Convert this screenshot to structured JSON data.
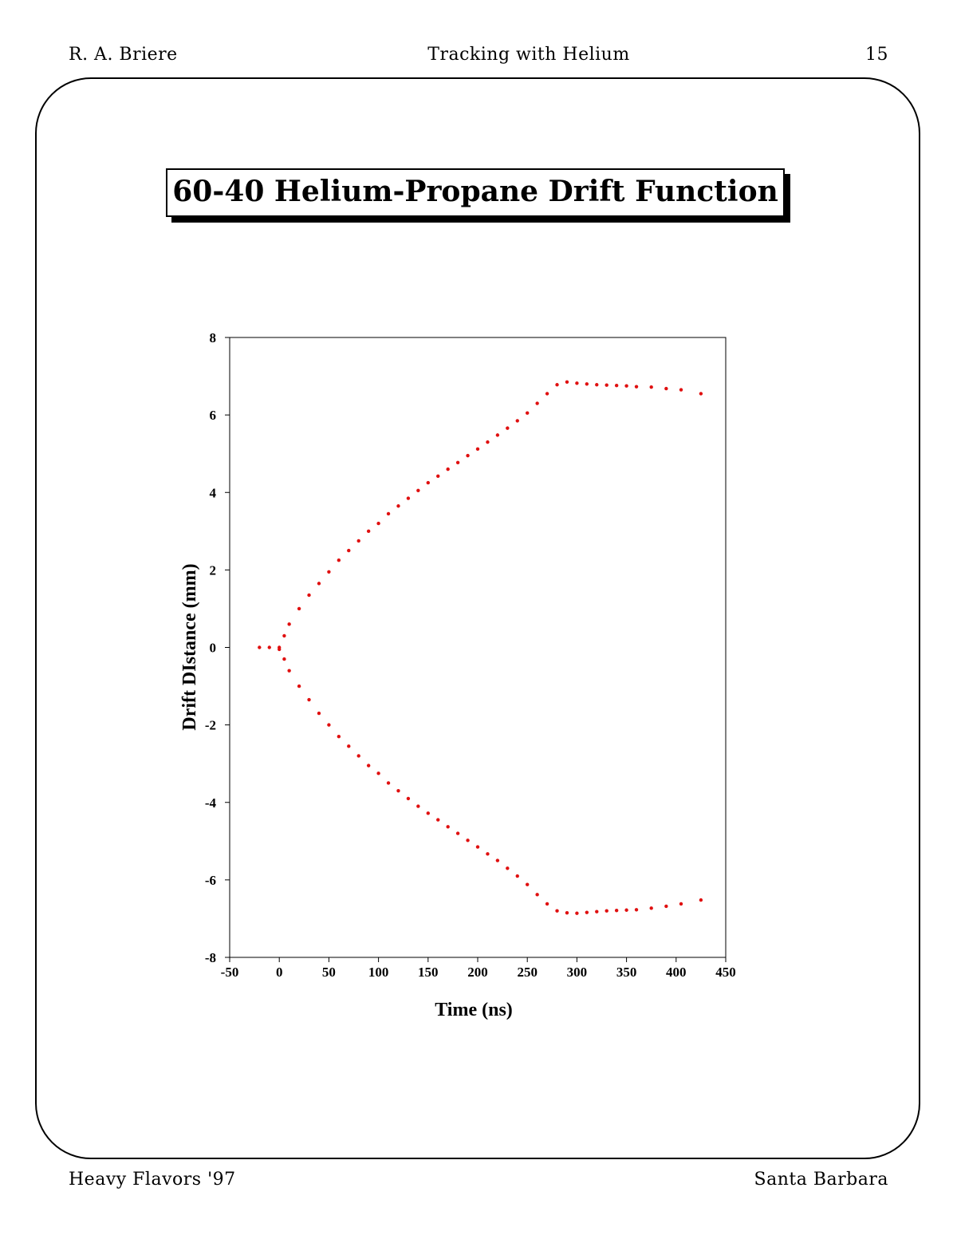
{
  "header": {
    "left": "R. A. Briere",
    "center": "Tracking with Helium",
    "right": "15"
  },
  "footer": {
    "left": "Heavy Flavors '97",
    "right": "Santa Barbara"
  },
  "slide_title": "60-40 Helium-Propane Drift Function",
  "colors": {
    "points": "#e01010"
  },
  "chart_data": {
    "type": "scatter",
    "title": "60-40 Helium-Propane Drift Function",
    "xlabel": "Time (ns)",
    "ylabel": "Drift DIstance (mm)",
    "xlim": [
      -50,
      450
    ],
    "ylim": [
      -8,
      8
    ],
    "xticks": [
      -50,
      0,
      50,
      100,
      150,
      200,
      250,
      300,
      350,
      400,
      450
    ],
    "yticks": [
      8,
      6,
      4,
      2,
      0,
      -2,
      -4,
      -6,
      -8
    ],
    "grid": false,
    "series": [
      {
        "points": [
          [
            -20,
            0.0
          ],
          [
            -10,
            0.0
          ],
          [
            0,
            0.0
          ],
          [
            5,
            0.3
          ],
          [
            10,
            0.6
          ],
          [
            20,
            1.0
          ],
          [
            30,
            1.35
          ],
          [
            40,
            1.65
          ],
          [
            50,
            1.95
          ],
          [
            60,
            2.25
          ],
          [
            70,
            2.5
          ],
          [
            80,
            2.75
          ],
          [
            90,
            3.0
          ],
          [
            100,
            3.2
          ],
          [
            110,
            3.45
          ],
          [
            120,
            3.65
          ],
          [
            130,
            3.85
          ],
          [
            140,
            4.05
          ],
          [
            150,
            4.25
          ],
          [
            160,
            4.42
          ],
          [
            170,
            4.6
          ],
          [
            180,
            4.77
          ],
          [
            190,
            4.95
          ],
          [
            200,
            5.12
          ],
          [
            210,
            5.3
          ],
          [
            220,
            5.48
          ],
          [
            230,
            5.66
          ],
          [
            240,
            5.85
          ],
          [
            250,
            6.05
          ],
          [
            260,
            6.3
          ],
          [
            270,
            6.55
          ],
          [
            280,
            6.78
          ],
          [
            290,
            6.85
          ],
          [
            300,
            6.82
          ],
          [
            310,
            6.8
          ],
          [
            320,
            6.78
          ],
          [
            330,
            6.77
          ],
          [
            340,
            6.76
          ],
          [
            350,
            6.75
          ],
          [
            360,
            6.73
          ],
          [
            375,
            6.72
          ],
          [
            390,
            6.68
          ],
          [
            405,
            6.65
          ],
          [
            425,
            6.55
          ]
        ]
      },
      {
        "points": [
          [
            0,
            -0.05
          ],
          [
            5,
            -0.3
          ],
          [
            10,
            -0.6
          ],
          [
            20,
            -1.0
          ],
          [
            30,
            -1.35
          ],
          [
            40,
            -1.7
          ],
          [
            50,
            -2.0
          ],
          [
            60,
            -2.3
          ],
          [
            70,
            -2.55
          ],
          [
            80,
            -2.8
          ],
          [
            90,
            -3.05
          ],
          [
            100,
            -3.25
          ],
          [
            110,
            -3.5
          ],
          [
            120,
            -3.7
          ],
          [
            130,
            -3.9
          ],
          [
            140,
            -4.1
          ],
          [
            150,
            -4.28
          ],
          [
            160,
            -4.45
          ],
          [
            170,
            -4.63
          ],
          [
            180,
            -4.8
          ],
          [
            190,
            -4.98
          ],
          [
            200,
            -5.15
          ],
          [
            210,
            -5.33
          ],
          [
            220,
            -5.5
          ],
          [
            230,
            -5.7
          ],
          [
            240,
            -5.9
          ],
          [
            250,
            -6.12
          ],
          [
            260,
            -6.38
          ],
          [
            270,
            -6.62
          ],
          [
            280,
            -6.8
          ],
          [
            290,
            -6.85
          ],
          [
            300,
            -6.86
          ],
          [
            310,
            -6.84
          ],
          [
            320,
            -6.82
          ],
          [
            330,
            -6.8
          ],
          [
            340,
            -6.79
          ],
          [
            350,
            -6.78
          ],
          [
            360,
            -6.77
          ],
          [
            375,
            -6.73
          ],
          [
            390,
            -6.68
          ],
          [
            405,
            -6.62
          ],
          [
            425,
            -6.52
          ]
        ]
      }
    ]
  }
}
